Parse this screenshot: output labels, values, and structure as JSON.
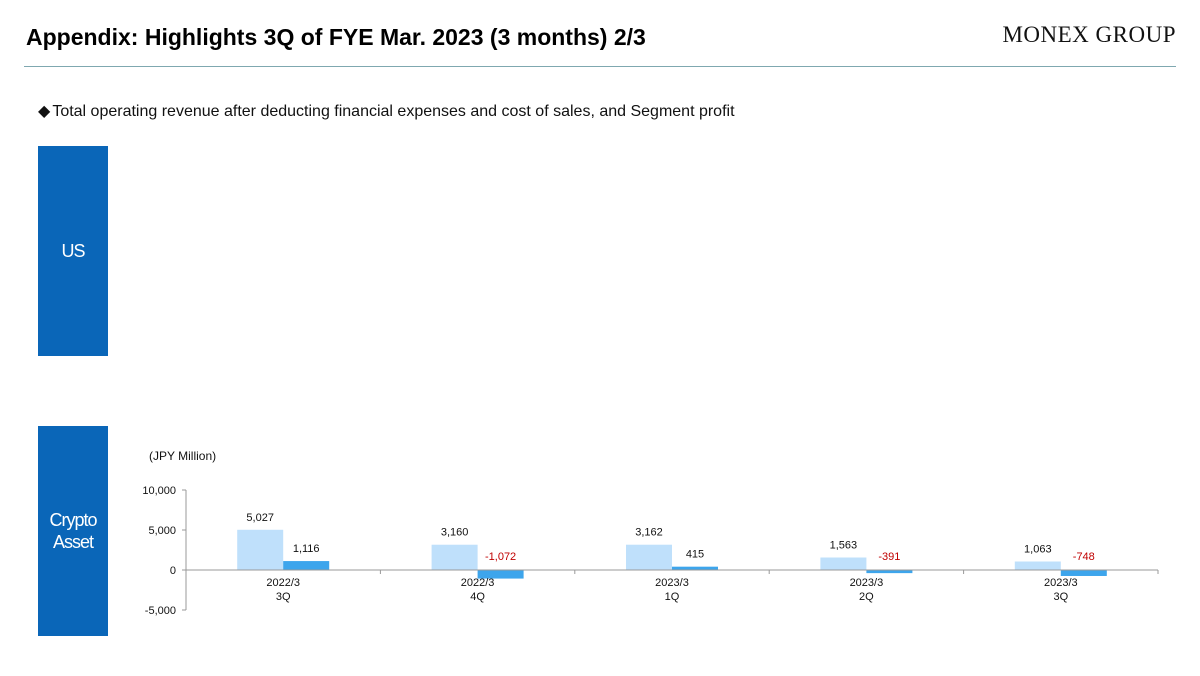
{
  "header": {
    "title": "Appendix: Highlights 3Q of FYE Mar. 2023 (3 months) 2/3",
    "logo_text": "MONEX GROUP"
  },
  "subtitle": {
    "bullet": "◆",
    "text": "Total operating revenue after deducting financial expenses and cost of sales, and Segment profit"
  },
  "segments": {
    "us_label": "US",
    "crypto_label_line1": "Crypto",
    "crypto_label_line2": "Asset",
    "label_color": "#0a66b8"
  },
  "chart_data": {
    "type": "bar",
    "unit_label": "(JPY Million)",
    "categories": [
      [
        "2022/3",
        "3Q"
      ],
      [
        "2022/3",
        "4Q"
      ],
      [
        "2023/3",
        "1Q"
      ],
      [
        "2023/3",
        "2Q"
      ],
      [
        "2023/3",
        "3Q"
      ]
    ],
    "series": [
      {
        "values": [
          5027,
          3160,
          3162,
          1563,
          1063
        ],
        "labels": [
          "5,027",
          "3,160",
          "3,162",
          "1,563",
          "1,063"
        ],
        "color": "#bfe0fb"
      },
      {
        "values": [
          1116,
          -1072,
          415,
          -391,
          -748
        ],
        "labels": [
          "1,116",
          "-1,072",
          "415",
          "-391",
          "-748"
        ],
        "color": "#3da5ec",
        "negative_label_color": "#c00000"
      }
    ],
    "ylim": [
      -5000,
      10000
    ],
    "yticks": [
      -5000,
      0,
      5000,
      10000
    ],
    "ytick_labels": [
      "-5,000",
      "0",
      "5,000",
      "10,000"
    ],
    "grid": false,
    "legend": "none"
  }
}
